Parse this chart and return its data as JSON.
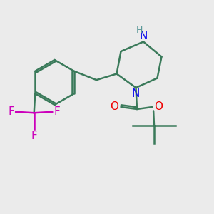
{
  "background_color": "#ebebeb",
  "bond_color": "#3a7a5a",
  "nitrogen_color": "#1010ee",
  "oxygen_color": "#ee0000",
  "fluorine_color": "#cc00bb",
  "nh_color": "#5a9898",
  "line_width": 1.8,
  "figsize": [
    3.0,
    3.0
  ],
  "dpi": 100,
  "xlim": [
    0,
    10
  ],
  "ylim": [
    0,
    10
  ],
  "font_size_atom": 11,
  "font_size_h": 9
}
